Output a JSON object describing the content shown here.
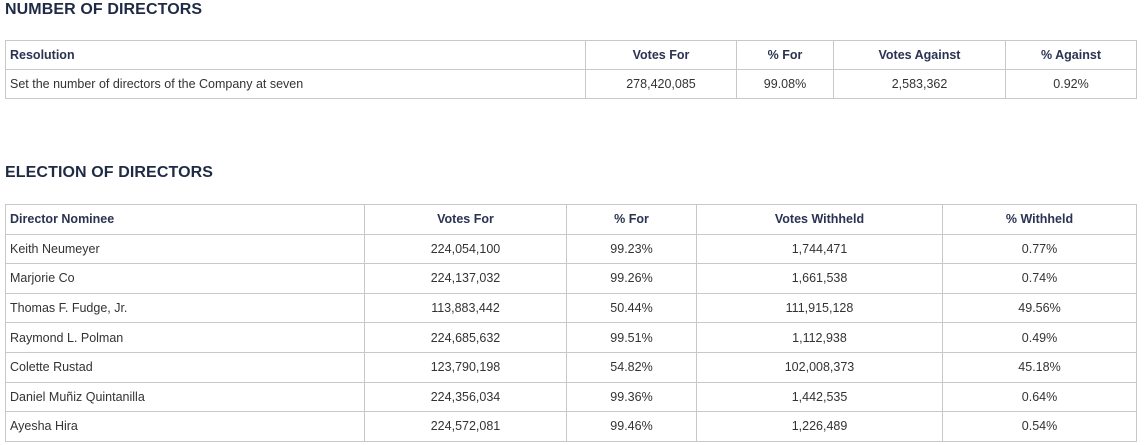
{
  "number_of_directors": {
    "title": "NUMBER OF DIRECTORS",
    "headers": [
      "Resolution",
      "Votes For",
      "% For",
      "Votes Against",
      "% Against"
    ],
    "rows": [
      [
        "Set the number of directors of the Company at seven",
        "278,420,085",
        "99.08%",
        "2,583,362",
        "0.92%"
      ]
    ]
  },
  "election_of_directors": {
    "title": "ELECTION OF DIRECTORS",
    "headers": [
      "Director Nominee",
      "Votes For",
      "% For",
      "Votes Withheld",
      "% Withheld"
    ],
    "rows": [
      [
        "Keith Neumeyer",
        "224,054,100",
        "99.23%",
        "1,744,471",
        "0.77%"
      ],
      [
        "Marjorie Co",
        "224,137,032",
        "99.26%",
        "1,661,538",
        "0.74%"
      ],
      [
        "Thomas F. Fudge, Jr.",
        "113,883,442",
        "50.44%",
        "111,915,128",
        "49.56%"
      ],
      [
        "Raymond L. Polman",
        "224,685,632",
        "99.51%",
        "1,112,938",
        "0.49%"
      ],
      [
        "Colette Rustad",
        "123,790,198",
        "54.82%",
        "102,008,373",
        "45.18%"
      ],
      [
        "Daniel Muñiz Quintanilla",
        "224,356,034",
        "99.36%",
        "1,442,535",
        "0.64%"
      ],
      [
        "Ayesha Hira",
        "224,572,081",
        "99.46%",
        "1,226,489",
        "0.54%"
      ]
    ]
  }
}
